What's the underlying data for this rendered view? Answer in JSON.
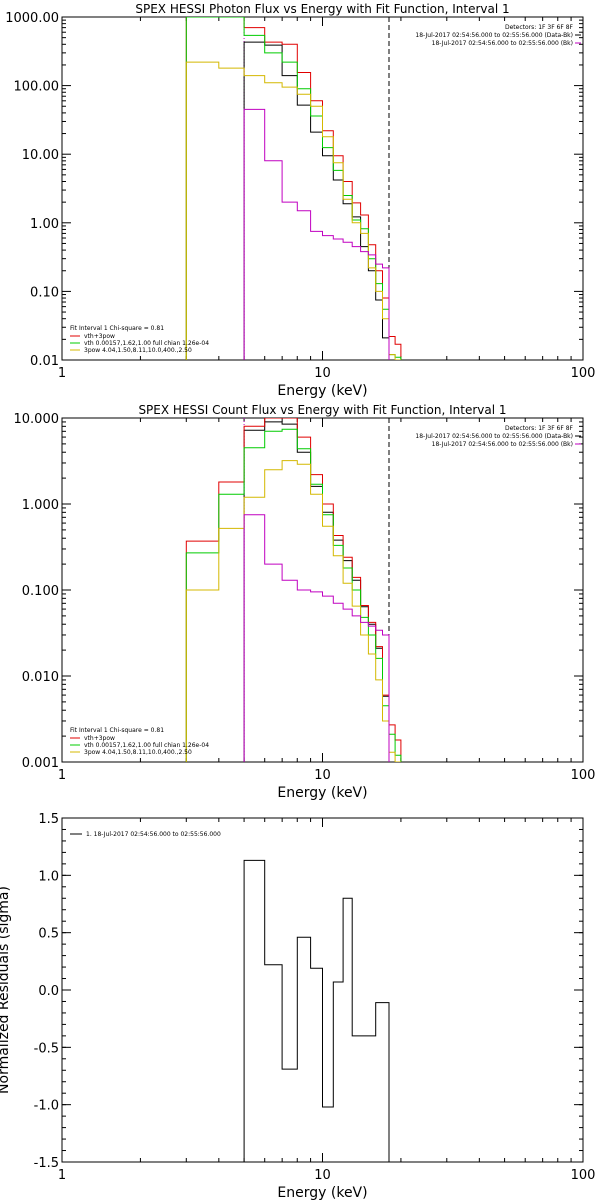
{
  "chart_data": [
    {
      "type": "line",
      "title": "SPEX HESSI Photon Flux vs Energy with Fit Function, Interval 1",
      "xlabel": "Energy (keV)",
      "ylabel": "",
      "xscale": "log",
      "yscale": "log",
      "xlim": [
        1,
        100
      ],
      "ylim": [
        0.01,
        1000
      ],
      "xticks": [
        1,
        10,
        100
      ],
      "xtick_labels": [
        "1",
        "10",
        "100"
      ],
      "yticks": [
        0.01,
        0.1,
        1,
        10,
        100,
        1000
      ],
      "ytick_labels": [
        "0.01",
        "0.10",
        "1.00",
        "10.00",
        "100.00",
        "1000.00"
      ],
      "minor_ticks": true,
      "grid": false,
      "vlines": [
        {
          "x": 5.0,
          "color": "#c000c0",
          "style": "dotted"
        },
        {
          "x": 18.0,
          "color": "#000000",
          "style": "dashed"
        }
      ],
      "header_right": [
        "Detectors: 1F 3F 6F 8F",
        "18-Jul-2017 02:54:56.000 to 02:55:56.000 (Data-Bk)",
        "18-Jul-2017 02:54:56.000 to 02:55:56.000 (Bk)"
      ],
      "header_colors": [
        "#000000",
        "#000000",
        "#c000c0"
      ],
      "legend": {
        "position": "bottom-left",
        "title": "Fit Interval 1    Chi-square = 0.81",
        "entries": [
          {
            "label": "vth+3pow",
            "color": "#e00000"
          },
          {
            "label": "vth 0.00157,1.62,1.00  full chian 1.26e-04",
            "color": "#00cc00"
          },
          {
            "label": "3pow 4.04,1.50,8.11,10.0,400.,2.50",
            "color": "#d4b800"
          }
        ]
      },
      "edges": [
        3,
        4,
        5,
        6,
        7,
        8,
        9,
        10,
        11,
        12,
        13,
        14,
        15,
        16,
        17,
        18,
        19,
        20,
        21
      ],
      "series": [
        {
          "name": "data",
          "color": "#000000",
          "values": [
            null,
            null,
            430,
            390,
            140,
            52,
            21,
            9.5,
            4.2,
            1.9,
            1.22,
            0.45,
            0.2,
            0.075,
            0.021,
            null,
            null,
            null
          ]
        },
        {
          "name": "vth+3pow",
          "color": "#e00000",
          "values": [
            1500,
            1300,
            700,
            430,
            400,
            155,
            60,
            22,
            9.5,
            4.0,
            1.95,
            1.3,
            0.48,
            0.2,
            0.08,
            0.022,
            0.017,
            null
          ]
        },
        {
          "name": "vth",
          "color": "#00cc00",
          "values": [
            1500,
            1300,
            540,
            300,
            220,
            90,
            36,
            12.5,
            5.8,
            2.5,
            1.1,
            0.82,
            0.3,
            0.13,
            0.055,
            0.012,
            0.011,
            null
          ]
        },
        {
          "name": "3pow",
          "color": "#d4b800",
          "values": [
            220,
            180,
            140,
            110,
            95,
            75,
            50,
            18,
            7.5,
            2.2,
            1.0,
            0.7,
            0.22,
            0.1,
            0.04,
            0.012,
            0.01,
            null
          ]
        },
        {
          "name": "Bk",
          "color": "#c000c0",
          "values": [
            null,
            null,
            45,
            8,
            2.0,
            1.5,
            0.75,
            0.65,
            0.58,
            0.52,
            0.45,
            0.38,
            0.34,
            0.25,
            0.22,
            null,
            null,
            null
          ]
        }
      ]
    },
    {
      "type": "line",
      "title": "SPEX HESSI Count Flux vs Energy with Fit Function, Interval 1",
      "xlabel": "Energy (keV)",
      "ylabel": "",
      "xscale": "log",
      "yscale": "log",
      "xlim": [
        1,
        100
      ],
      "ylim": [
        0.001,
        10
      ],
      "xticks": [
        1,
        10,
        100
      ],
      "xtick_labels": [
        "1",
        "10",
        "100"
      ],
      "yticks": [
        0.001,
        0.01,
        0.1,
        1,
        10
      ],
      "ytick_labels": [
        "0.001",
        "0.010",
        "0.100",
        "1.000",
        "10.000"
      ],
      "minor_ticks": true,
      "grid": false,
      "vlines": [
        {
          "x": 5.0,
          "color": "#c000c0",
          "style": "dotted"
        },
        {
          "x": 18.0,
          "color": "#000000",
          "style": "dashed"
        }
      ],
      "header_right": [
        "Detectors: 1F 3F 6F 8F",
        "18-Jul-2017 02:54:56.000 to 02:55:56.000 (Data-Bk)",
        "18-Jul-2017 02:54:56.000 to 02:55:56.000 (Bk)"
      ],
      "header_colors": [
        "#000000",
        "#000000",
        "#c000c0"
      ],
      "legend": {
        "position": "bottom-left",
        "title": "Fit Interval 1    Chi-square = 0.81",
        "entries": [
          {
            "label": "vth+3pow",
            "color": "#e00000"
          },
          {
            "label": "vth 0.00157,1.62,1.00  full chian 1.26e-04",
            "color": "#00cc00"
          },
          {
            "label": "3pow 4.04,1.50,8.11,10.0,400.,2.50",
            "color": "#d4b800"
          }
        ]
      },
      "edges": [
        3,
        4,
        5,
        6,
        7,
        8,
        9,
        10,
        11,
        12,
        13,
        14,
        15,
        16,
        17,
        18,
        19,
        20,
        21
      ],
      "series": [
        {
          "name": "data",
          "color": "#000000",
          "values": [
            null,
            null,
            7.2,
            9.0,
            8.5,
            4.0,
            1.6,
            0.8,
            0.38,
            0.22,
            0.13,
            0.064,
            0.04,
            0.021,
            0.0058,
            null,
            null,
            null
          ]
        },
        {
          "name": "vth+3pow",
          "color": "#e00000",
          "values": [
            0.37,
            1.8,
            8.0,
            10.5,
            10.5,
            6.0,
            2.2,
            1.0,
            0.43,
            0.24,
            0.14,
            0.066,
            0.042,
            0.022,
            0.006,
            0.0027,
            0.0018,
            null
          ]
        },
        {
          "name": "vth",
          "color": "#00cc00",
          "values": [
            0.27,
            1.3,
            4.5,
            7.0,
            7.4,
            4.4,
            1.7,
            0.75,
            0.33,
            0.18,
            0.1,
            0.048,
            0.03,
            0.016,
            0.0045,
            0.0021,
            0.0012,
            null
          ]
        },
        {
          "name": "3pow",
          "color": "#d4b800",
          "values": [
            0.1,
            0.52,
            1.2,
            2.5,
            3.2,
            2.9,
            1.3,
            0.55,
            0.25,
            0.12,
            0.065,
            0.03,
            0.018,
            0.009,
            0.003,
            0.0013,
            0.001,
            null
          ]
        },
        {
          "name": "Bk",
          "color": "#c000c0",
          "values": [
            null,
            null,
            0.75,
            0.2,
            0.13,
            0.1,
            0.095,
            0.085,
            0.07,
            0.06,
            0.05,
            0.042,
            0.038,
            0.034,
            0.03,
            null,
            null,
            null
          ]
        }
      ]
    },
    {
      "type": "line",
      "title": "",
      "xlabel": "Energy (keV)",
      "ylabel": "Normalized Residuals (sigma)",
      "xscale": "log",
      "yscale": "linear",
      "xlim": [
        1,
        100
      ],
      "ylim": [
        -1.5,
        1.5
      ],
      "xticks": [
        1,
        10,
        100
      ],
      "xtick_labels": [
        "1",
        "10",
        "100"
      ],
      "yticks": [
        -1.5,
        -1.0,
        -0.5,
        0.0,
        0.5,
        1.0,
        1.5
      ],
      "ytick_labels": [
        "-1.5",
        "-1.0",
        "-0.5",
        "0.0",
        "0.5",
        "1.0",
        "1.5"
      ],
      "minor_ticks": true,
      "grid": false,
      "legend": {
        "position": "top-left",
        "entries": [
          {
            "label": "1. 18-Jul-2017 02:54:56.000 to 02:55:56.000",
            "color": "#000000"
          }
        ]
      },
      "edges": [
        5,
        6,
        7,
        8,
        9,
        10,
        11,
        12,
        13,
        14,
        15,
        16,
        17,
        18
      ],
      "series": [
        {
          "name": "",
          "color": "#000000",
          "values": [
            1.13,
            0.22,
            -0.69,
            0.46,
            0.19,
            -1.02,
            0.07,
            0.8,
            -0.4,
            -0.4,
            -0.4,
            -0.11,
            -0.11
          ]
        }
      ]
    }
  ]
}
